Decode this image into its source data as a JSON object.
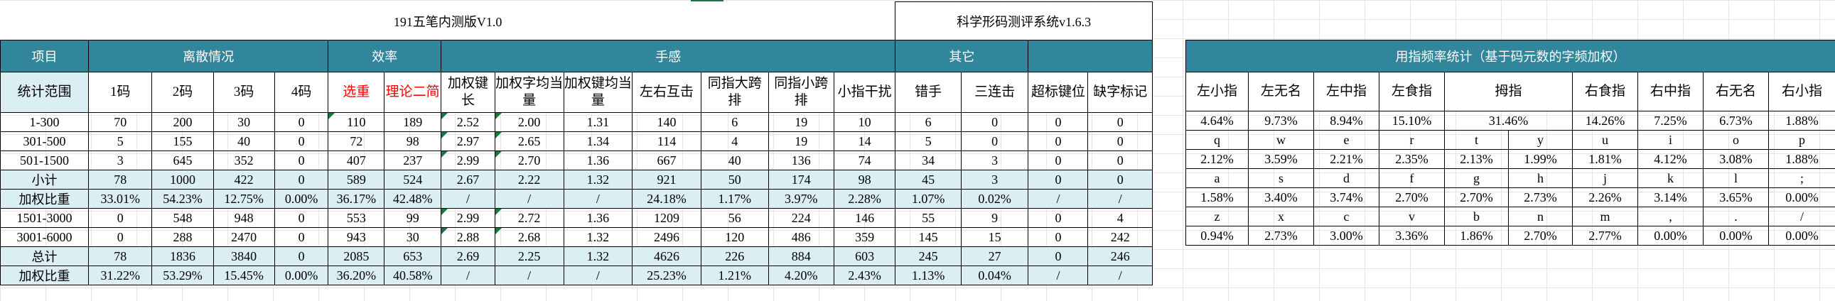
{
  "title": "191五笔内测版V1.0",
  "system_name": "科学形码测评系统v1.6.3",
  "sections": {
    "item": "项目",
    "discrete": "离散情况",
    "efficiency": "效率",
    "feel": "手感",
    "other": "其它",
    "freq": "用指频率统计（基于码元数的字频加权）"
  },
  "columns": {
    "stat_range": "统计范围",
    "c1": "1码",
    "c2": "2码",
    "c3": "3码",
    "c4": "4码",
    "dup": "选重",
    "theory": "理论二简",
    "wkl": "加权键长",
    "wcount": "加权字均当量",
    "wkey": "加权键均当量",
    "lr": "左右互击",
    "same_big": "同指大跨排",
    "same_small": "同指小跨排",
    "pinky": "小指干扰",
    "mishand": "错手",
    "triple": "三连击",
    "over": "超标键位",
    "missing": "缺字标记"
  },
  "rows": [
    {
      "label": "1-300",
      "v": [
        "70",
        "200",
        "30",
        "0",
        "110",
        "189",
        "2.52",
        "2.00",
        "1.31",
        "140",
        "6",
        "19",
        "10",
        "6",
        "0",
        "0",
        "0"
      ]
    },
    {
      "label": "301-500",
      "v": [
        "5",
        "155",
        "40",
        "0",
        "72",
        "98",
        "2.97",
        "2.65",
        "1.34",
        "114",
        "4",
        "19",
        "14",
        "5",
        "0",
        "0",
        "0"
      ]
    },
    {
      "label": "501-1500",
      "v": [
        "3",
        "645",
        "352",
        "0",
        "407",
        "237",
        "2.99",
        "2.70",
        "1.36",
        "667",
        "40",
        "136",
        "74",
        "34",
        "3",
        "0",
        "0"
      ]
    },
    {
      "label": "小计",
      "v": [
        "78",
        "1000",
        "422",
        "0",
        "589",
        "524",
        "2.67",
        "2.22",
        "1.32",
        "921",
        "50",
        "174",
        "98",
        "45",
        "3",
        "0",
        "0"
      ]
    },
    {
      "label": "加权比重",
      "v": [
        "33.01%",
        "54.23%",
        "12.75%",
        "0.00%",
        "36.17%",
        "42.48%",
        "/",
        "/",
        "/",
        "24.18%",
        "1.17%",
        "3.97%",
        "2.28%",
        "1.07%",
        "0.02%",
        "/",
        "/"
      ]
    },
    {
      "label": "1501-3000",
      "v": [
        "0",
        "548",
        "948",
        "0",
        "553",
        "99",
        "2.99",
        "2.72",
        "1.36",
        "1209",
        "56",
        "224",
        "146",
        "55",
        "9",
        "0",
        "4"
      ]
    },
    {
      "label": "3001-6000",
      "v": [
        "0",
        "288",
        "2470",
        "0",
        "943",
        "30",
        "2.88",
        "2.68",
        "1.32",
        "2496",
        "120",
        "486",
        "359",
        "145",
        "15",
        "0",
        "242"
      ]
    },
    {
      "label": "总计",
      "v": [
        "78",
        "1836",
        "3840",
        "0",
        "2085",
        "653",
        "2.69",
        "2.25",
        "1.32",
        "4626",
        "226",
        "884",
        "603",
        "245",
        "27",
        "0",
        "246"
      ]
    },
    {
      "label": "加权比重",
      "v": [
        "31.22%",
        "53.29%",
        "15.45%",
        "0.00%",
        "36.20%",
        "40.58%",
        "/",
        "/",
        "/",
        "25.23%",
        "1.21%",
        "4.20%",
        "2.43%",
        "1.13%",
        "0.04%",
        "/",
        "/"
      ]
    }
  ],
  "fingers": {
    "headers": [
      "左小指",
      "左无名",
      "左中指",
      "左食指",
      "拇指",
      "右食指",
      "右中指",
      "右无名",
      "右小指"
    ],
    "totals": [
      "4.64%",
      "9.73%",
      "8.94%",
      "15.10%",
      "31.46%",
      "14.26%",
      "7.25%",
      "6.73%",
      "1.88%"
    ],
    "rows": [
      {
        "keys": [
          "q",
          "w",
          "e",
          "r",
          "t",
          "y",
          "u",
          "i",
          "o",
          "p"
        ],
        "pcts": [
          "2.12%",
          "3.59%",
          "2.21%",
          "2.35%",
          "2.13%",
          "1.99%",
          "1.81%",
          "4.12%",
          "3.08%",
          "1.88%"
        ]
      },
      {
        "keys": [
          "a",
          "s",
          "d",
          "f",
          "g",
          "h",
          "j",
          "k",
          "l",
          ";"
        ],
        "pcts": [
          "1.58%",
          "3.40%",
          "3.74%",
          "2.70%",
          "2.70%",
          "2.73%",
          "2.26%",
          "3.14%",
          "3.65%",
          "0.00%"
        ]
      },
      {
        "keys": [
          "z",
          "x",
          "c",
          "v",
          "b",
          "n",
          "m",
          ",",
          ".",
          "/"
        ],
        "pcts": [
          "0.94%",
          "2.73%",
          "3.00%",
          "3.36%",
          "1.86%",
          "2.70%",
          "2.77%",
          "0.00%",
          "0.00%",
          "0.00%"
        ]
      }
    ]
  },
  "colors": {
    "header_bg": "#31869b",
    "light_bg": "#daeef3",
    "accent_red": "#ff0000",
    "mark_green": "#0f7b3c"
  }
}
